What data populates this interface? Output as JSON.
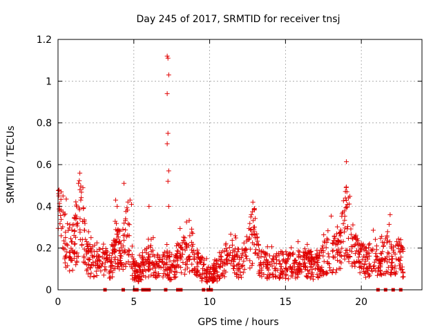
{
  "chart_data": {
    "type": "scatter",
    "title": "Day 245 of 2017, SRMTID for receiver tnsj",
    "xlabel": "GPS time / hours",
    "ylabel": "SRMTID / TECUs",
    "xlim": [
      0,
      24
    ],
    "ylim": [
      0,
      1.2
    ],
    "xticks": [
      0,
      5,
      10,
      15,
      20
    ],
    "xtick_labels": [
      "0",
      "5",
      "10",
      "15",
      "20"
    ],
    "yticks": [
      0,
      0.2,
      0.4,
      0.6,
      0.8,
      1.0,
      1.2
    ],
    "ytick_labels": [
      "0",
      "0.2",
      "0.4",
      "0.6",
      "0.8",
      "1",
      "1.2"
    ],
    "grid": true,
    "marker": "+",
    "series_color": "#e00000",
    "zero_markers_x": [
      3.1,
      4.3,
      5.05,
      5.2,
      5.6,
      5.8,
      6.0,
      7.1,
      7.9,
      8.1,
      9.6,
      9.9,
      10.1,
      21.1,
      21.6,
      22.1,
      22.6
    ],
    "profile": [
      {
        "x": 0.0,
        "y": 0.31
      },
      {
        "x": 0.3,
        "y": 0.29
      },
      {
        "x": 0.6,
        "y": 0.22
      },
      {
        "x": 0.9,
        "y": 0.18
      },
      {
        "x": 1.2,
        "y": 0.25
      },
      {
        "x": 1.45,
        "y": 0.4
      },
      {
        "x": 1.7,
        "y": 0.24
      },
      {
        "x": 2.0,
        "y": 0.14
      },
      {
        "x": 2.6,
        "y": 0.13
      },
      {
        "x": 3.0,
        "y": 0.14
      },
      {
        "x": 3.5,
        "y": 0.1
      },
      {
        "x": 3.9,
        "y": 0.22
      },
      {
        "x": 4.2,
        "y": 0.16
      },
      {
        "x": 4.6,
        "y": 0.28
      },
      {
        "x": 4.9,
        "y": 0.1
      },
      {
        "x": 5.3,
        "y": 0.08
      },
      {
        "x": 5.8,
        "y": 0.12
      },
      {
        "x": 6.2,
        "y": 0.16
      },
      {
        "x": 6.6,
        "y": 0.1
      },
      {
        "x": 7.0,
        "y": 0.14
      },
      {
        "x": 7.4,
        "y": 0.1
      },
      {
        "x": 7.8,
        "y": 0.14
      },
      {
        "x": 8.3,
        "y": 0.16
      },
      {
        "x": 8.8,
        "y": 0.18
      },
      {
        "x": 9.2,
        "y": 0.12
      },
      {
        "x": 9.6,
        "y": 0.08
      },
      {
        "x": 10.0,
        "y": 0.07
      },
      {
        "x": 10.5,
        "y": 0.09
      },
      {
        "x": 11.0,
        "y": 0.13
      },
      {
        "x": 11.5,
        "y": 0.15
      },
      {
        "x": 12.0,
        "y": 0.12
      },
      {
        "x": 12.5,
        "y": 0.17
      },
      {
        "x": 12.9,
        "y": 0.27
      },
      {
        "x": 13.3,
        "y": 0.12
      },
      {
        "x": 14.0,
        "y": 0.11
      },
      {
        "x": 14.8,
        "y": 0.12
      },
      {
        "x": 15.5,
        "y": 0.11
      },
      {
        "x": 16.0,
        "y": 0.12
      },
      {
        "x": 16.6,
        "y": 0.12
      },
      {
        "x": 17.0,
        "y": 0.1
      },
      {
        "x": 17.5,
        "y": 0.15
      },
      {
        "x": 18.0,
        "y": 0.18
      },
      {
        "x": 18.5,
        "y": 0.15
      },
      {
        "x": 19.0,
        "y": 0.32
      },
      {
        "x": 19.4,
        "y": 0.22
      },
      {
        "x": 19.8,
        "y": 0.15
      },
      {
        "x": 20.3,
        "y": 0.13
      },
      {
        "x": 20.8,
        "y": 0.15
      },
      {
        "x": 21.2,
        "y": 0.12
      },
      {
        "x": 21.7,
        "y": 0.18
      },
      {
        "x": 22.1,
        "y": 0.13
      },
      {
        "x": 22.5,
        "y": 0.15
      },
      {
        "x": 22.8,
        "y": 0.13
      }
    ],
    "peaks": [
      {
        "x": 0.05,
        "y": 0.45
      },
      {
        "x": 0.1,
        "y": 0.4
      },
      {
        "x": 1.35,
        "y": 0.51
      },
      {
        "x": 1.45,
        "y": 0.48
      },
      {
        "x": 1.5,
        "y": 0.43
      },
      {
        "x": 3.8,
        "y": 0.43
      },
      {
        "x": 3.9,
        "y": 0.4
      },
      {
        "x": 4.35,
        "y": 0.51
      },
      {
        "x": 4.75,
        "y": 0.43
      },
      {
        "x": 4.85,
        "y": 0.41
      },
      {
        "x": 6.0,
        "y": 0.4
      },
      {
        "x": 7.2,
        "y": 1.12
      },
      {
        "x": 7.25,
        "y": 1.11
      },
      {
        "x": 7.3,
        "y": 1.03
      },
      {
        "x": 7.2,
        "y": 0.94
      },
      {
        "x": 7.25,
        "y": 0.75
      },
      {
        "x": 7.2,
        "y": 0.7
      },
      {
        "x": 7.3,
        "y": 0.57
      },
      {
        "x": 7.25,
        "y": 0.52
      },
      {
        "x": 7.3,
        "y": 0.4
      },
      {
        "x": 12.85,
        "y": 0.42
      },
      {
        "x": 12.95,
        "y": 0.39
      },
      {
        "x": 19.0,
        "y": 0.49
      },
      {
        "x": 19.05,
        "y": 0.47
      },
      {
        "x": 18.95,
        "y": 0.44
      },
      {
        "x": 21.9,
        "y": 0.36
      },
      {
        "x": 22.6,
        "y": 0.24
      }
    ]
  }
}
